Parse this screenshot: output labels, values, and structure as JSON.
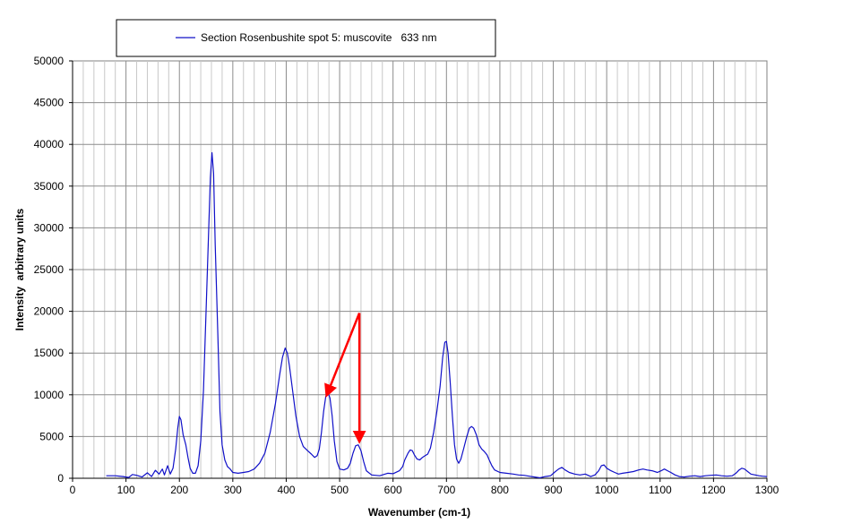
{
  "chart_data": {
    "type": "line",
    "title": "",
    "xlabel": "Wavenumber (cm-1)",
    "ylabel": "Intensity  arbitrary units",
    "xlim": [
      0,
      1300
    ],
    "ylim": [
      0,
      50000
    ],
    "x_ticks": [
      "0",
      "100",
      "200",
      "300",
      "400",
      "500",
      "600",
      "700",
      "800",
      "900",
      "1000",
      "1100",
      "1200",
      "1300"
    ],
    "y_ticks": [
      "0",
      "5000",
      "10000",
      "15000",
      "20000",
      "25000",
      "30000",
      "35000",
      "40000",
      "45000",
      "50000"
    ],
    "x_minor_step": 20,
    "grid": true,
    "legend": {
      "position": "top",
      "frame": true
    },
    "series": [
      {
        "name": "Section Rosenbushite spot 5: muscovite   633 nm",
        "color": "#1010c8",
        "points": [
          [
            63,
            300
          ],
          [
            80,
            300
          ],
          [
            95,
            200
          ],
          [
            105,
            100
          ],
          [
            112,
            450
          ],
          [
            120,
            350
          ],
          [
            130,
            150
          ],
          [
            140,
            650
          ],
          [
            148,
            200
          ],
          [
            155,
            950
          ],
          [
            162,
            500
          ],
          [
            168,
            1100
          ],
          [
            172,
            400
          ],
          [
            178,
            1500
          ],
          [
            183,
            500
          ],
          [
            188,
            1200
          ],
          [
            193,
            3500
          ],
          [
            197,
            6000
          ],
          [
            200,
            7400
          ],
          [
            203,
            7000
          ],
          [
            207,
            5200
          ],
          [
            212,
            4000
          ],
          [
            216,
            2500
          ],
          [
            220,
            1200
          ],
          [
            225,
            600
          ],
          [
            230,
            600
          ],
          [
            235,
            1500
          ],
          [
            240,
            4500
          ],
          [
            245,
            10500
          ],
          [
            250,
            20000
          ],
          [
            255,
            30000
          ],
          [
            258,
            36000
          ],
          [
            261,
            39000
          ],
          [
            264,
            36500
          ],
          [
            267,
            28000
          ],
          [
            272,
            17000
          ],
          [
            276,
            8000
          ],
          [
            280,
            4000
          ],
          [
            285,
            2200
          ],
          [
            290,
            1400
          ],
          [
            295,
            1100
          ],
          [
            300,
            700
          ],
          [
            310,
            600
          ],
          [
            320,
            700
          ],
          [
            330,
            800
          ],
          [
            340,
            1100
          ],
          [
            350,
            1800
          ],
          [
            360,
            3000
          ],
          [
            370,
            5500
          ],
          [
            380,
            9000
          ],
          [
            388,
            12500
          ],
          [
            393,
            14500
          ],
          [
            398,
            15600
          ],
          [
            402,
            15000
          ],
          [
            406,
            13500
          ],
          [
            412,
            10500
          ],
          [
            418,
            7500
          ],
          [
            425,
            5000
          ],
          [
            432,
            3800
          ],
          [
            440,
            3300
          ],
          [
            447,
            2900
          ],
          [
            453,
            2500
          ],
          [
            458,
            2700
          ],
          [
            462,
            3500
          ],
          [
            466,
            5500
          ],
          [
            470,
            8000
          ],
          [
            474,
            9800
          ],
          [
            478,
            10300
          ],
          [
            482,
            9600
          ],
          [
            486,
            7500
          ],
          [
            490,
            4500
          ],
          [
            495,
            2000
          ],
          [
            500,
            1100
          ],
          [
            508,
            1000
          ],
          [
            515,
            1200
          ],
          [
            520,
            1800
          ],
          [
            525,
            3000
          ],
          [
            530,
            3900
          ],
          [
            535,
            4000
          ],
          [
            540,
            3300
          ],
          [
            545,
            2000
          ],
          [
            550,
            900
          ],
          [
            560,
            400
          ],
          [
            575,
            300
          ],
          [
            590,
            600
          ],
          [
            600,
            550
          ],
          [
            612,
            900
          ],
          [
            618,
            1400
          ],
          [
            622,
            2200
          ],
          [
            628,
            3000
          ],
          [
            632,
            3400
          ],
          [
            636,
            3300
          ],
          [
            640,
            2800
          ],
          [
            645,
            2300
          ],
          [
            650,
            2200
          ],
          [
            655,
            2500
          ],
          [
            660,
            2700
          ],
          [
            665,
            2900
          ],
          [
            670,
            3600
          ],
          [
            676,
            5500
          ],
          [
            682,
            8000
          ],
          [
            688,
            11000
          ],
          [
            693,
            14500
          ],
          [
            697,
            16300
          ],
          [
            700,
            16400
          ],
          [
            703,
            15000
          ],
          [
            707,
            11500
          ],
          [
            711,
            7500
          ],
          [
            715,
            4000
          ],
          [
            719,
            2300
          ],
          [
            723,
            1800
          ],
          [
            727,
            2300
          ],
          [
            732,
            3500
          ],
          [
            738,
            5000
          ],
          [
            743,
            6000
          ],
          [
            747,
            6200
          ],
          [
            751,
            6000
          ],
          [
            756,
            5200
          ],
          [
            761,
            4000
          ],
          [
            766,
            3500
          ],
          [
            771,
            3200
          ],
          [
            776,
            2800
          ],
          [
            780,
            2200
          ],
          [
            785,
            1500
          ],
          [
            790,
            1000
          ],
          [
            800,
            700
          ],
          [
            812,
            600
          ],
          [
            825,
            500
          ],
          [
            835,
            400
          ],
          [
            845,
            350
          ],
          [
            855,
            250
          ],
          [
            865,
            150
          ],
          [
            875,
            50
          ],
          [
            885,
            200
          ],
          [
            895,
            300
          ],
          [
            902,
            700
          ],
          [
            910,
            1100
          ],
          [
            916,
            1300
          ],
          [
            922,
            1000
          ],
          [
            930,
            700
          ],
          [
            940,
            500
          ],
          [
            950,
            400
          ],
          [
            960,
            500
          ],
          [
            970,
            200
          ],
          [
            978,
            400
          ],
          [
            985,
            900
          ],
          [
            990,
            1500
          ],
          [
            995,
            1600
          ],
          [
            1000,
            1200
          ],
          [
            1008,
            900
          ],
          [
            1015,
            700
          ],
          [
            1022,
            500
          ],
          [
            1030,
            600
          ],
          [
            1040,
            700
          ],
          [
            1050,
            800
          ],
          [
            1060,
            1000
          ],
          [
            1068,
            1100
          ],
          [
            1075,
            1000
          ],
          [
            1085,
            900
          ],
          [
            1095,
            700
          ],
          [
            1102,
            900
          ],
          [
            1108,
            1100
          ],
          [
            1114,
            900
          ],
          [
            1120,
            700
          ],
          [
            1128,
            400
          ],
          [
            1136,
            200
          ],
          [
            1145,
            150
          ],
          [
            1155,
            250
          ],
          [
            1165,
            300
          ],
          [
            1175,
            200
          ],
          [
            1185,
            300
          ],
          [
            1195,
            350
          ],
          [
            1205,
            400
          ],
          [
            1215,
            300
          ],
          [
            1225,
            250
          ],
          [
            1235,
            300
          ],
          [
            1242,
            600
          ],
          [
            1248,
            1000
          ],
          [
            1253,
            1200
          ],
          [
            1258,
            1100
          ],
          [
            1264,
            800
          ],
          [
            1270,
            500
          ],
          [
            1278,
            400
          ],
          [
            1285,
            300
          ],
          [
            1292,
            250
          ],
          [
            1300,
            200
          ]
        ]
      }
    ],
    "annotations": [
      {
        "type": "arrow",
        "color": "#ff0000",
        "from": [
          537,
          19800
        ],
        "to": [
          478,
          10300
        ]
      },
      {
        "type": "arrow",
        "color": "#ff0000",
        "from": [
          537,
          19800
        ],
        "to": [
          537,
          4800
        ]
      }
    ]
  }
}
